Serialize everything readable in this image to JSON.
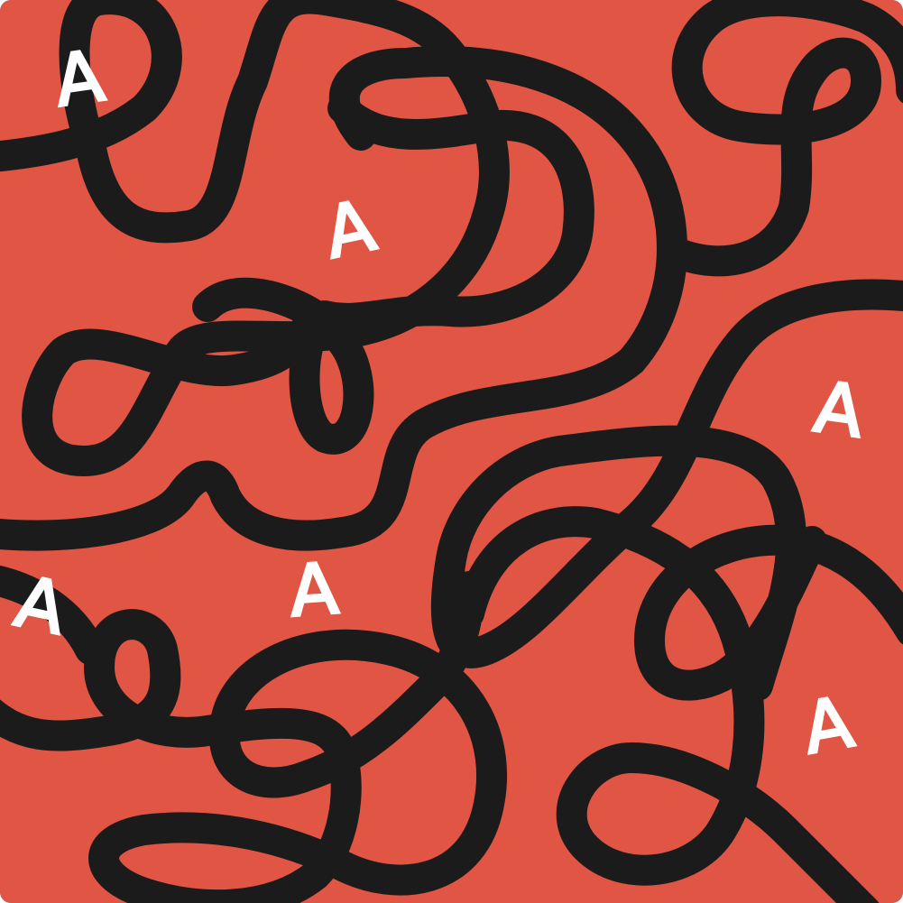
{
  "colors": {
    "background": "#e05543",
    "stroke": "#1b1b1b",
    "letter": "#ffffff",
    "corner": "#5e7f8f"
  },
  "letters": [
    {
      "text": "A"
    },
    {
      "text": "A"
    },
    {
      "text": "A"
    },
    {
      "text": "A"
    },
    {
      "text": "A"
    },
    {
      "text": "A"
    }
  ]
}
